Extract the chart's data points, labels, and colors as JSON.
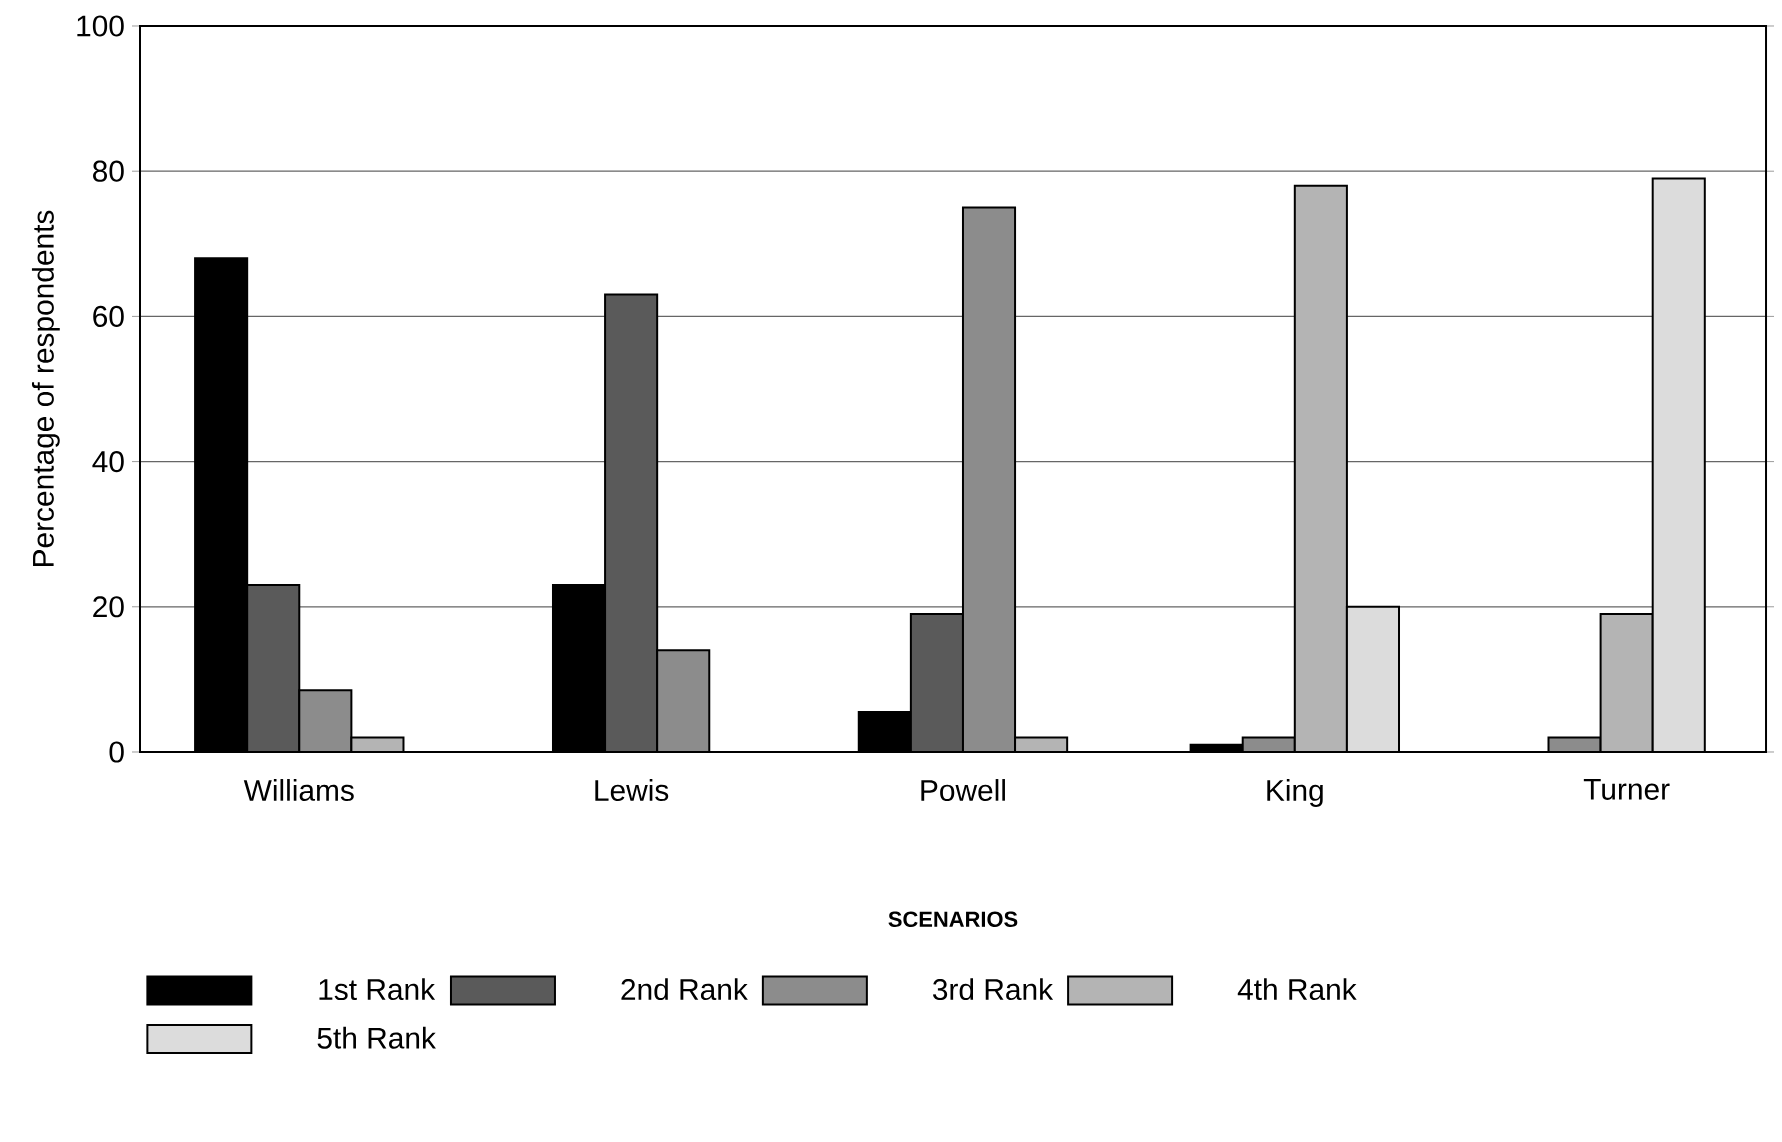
{
  "chart_data": {
    "type": "bar",
    "xlabel": "SCENARIOS",
    "ylabel": "Percentage of respondents",
    "categories": [
      "Williams",
      "Lewis",
      "Powell",
      "King",
      "Turner"
    ],
    "series": [
      {
        "name": "1st Rank",
        "color": "#000000",
        "values": [
          68,
          23,
          5.5,
          1,
          null
        ]
      },
      {
        "name": "2nd Rank",
        "color": "#5a5a5a",
        "values": [
          23,
          63,
          19,
          null,
          null
        ]
      },
      {
        "name": "3rd Rank",
        "color": "#8c8c8c",
        "values": [
          8.5,
          14,
          75,
          2,
          2
        ]
      },
      {
        "name": "4th Rank",
        "color": "#b4b4b4",
        "values": [
          2,
          null,
          2,
          78,
          19
        ]
      },
      {
        "name": "5th Rank",
        "color": "#dcdcdc",
        "values": [
          null,
          null,
          null,
          20,
          79
        ]
      }
    ],
    "ylim": [
      0,
      100
    ],
    "yticks": [
      0,
      20,
      40,
      60,
      80,
      100
    ],
    "grid": "y",
    "legend": "bottom"
  }
}
